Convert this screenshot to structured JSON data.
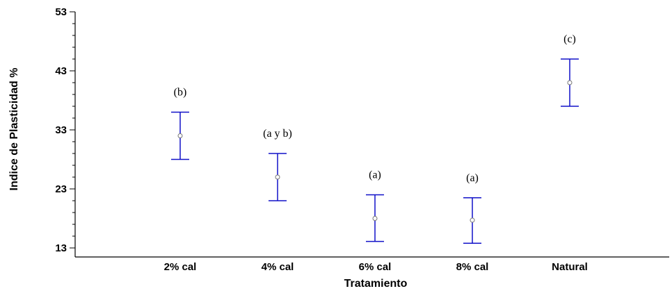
{
  "chart_data": {
    "type": "scatter",
    "subtype": "means-with-intervals",
    "xlabel": "Tratamiento",
    "ylabel": "Indice de Plasticidad %",
    "ylim": [
      13,
      53
    ],
    "yticks": [
      13,
      23,
      33,
      43,
      53
    ],
    "categories": [
      "2% cal",
      "4% cal",
      "6% cal",
      "8% cal",
      "Natural"
    ],
    "means": [
      32,
      25,
      18,
      17.7,
      41
    ],
    "lower": [
      28,
      21,
      14.1,
      13.8,
      37
    ],
    "upper": [
      36,
      29,
      22,
      21.5,
      45
    ],
    "group_labels": [
      "(b)",
      "(a y b)",
      "(a)",
      "(a)",
      "(c)"
    ],
    "grid": false,
    "legend": "none",
    "colors": {
      "error_bar": "#1010c8",
      "point": "#777777",
      "axis": "#000000"
    }
  }
}
